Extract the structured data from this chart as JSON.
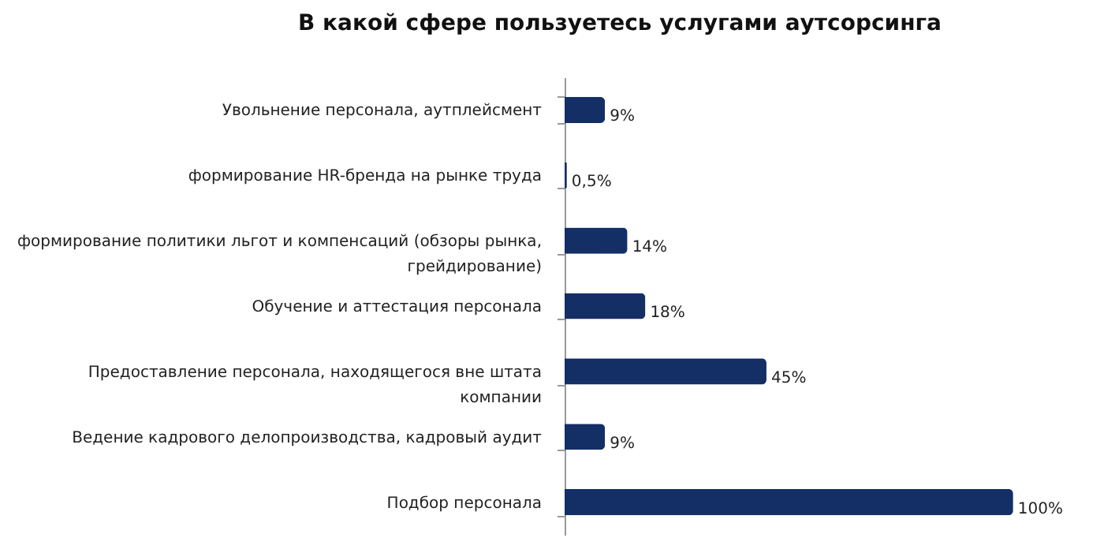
{
  "chart_data": {
    "type": "bar",
    "orientation": "horizontal",
    "title": "В какой сфере пользуетесь услугами аутсорсинга",
    "categories": [
      "Увольнение персонала, аутплейсмент",
      "формирование HR-бренда на рынке труда",
      "формирование политики льгот и компенсаций (обзоры рынка, грейдирование)",
      "Обучение и аттестация персонала",
      "Предоставление персонала, находящегося вне штата компании",
      "Ведение кадрового делопроизводства, кадровый аудит",
      "Подбор персонала"
    ],
    "values": [
      9,
      0.5,
      14,
      18,
      45,
      9,
      100
    ],
    "value_labels": [
      "9%",
      "0,5%",
      "14%",
      "18%",
      "45%",
      "9%",
      "100%"
    ],
    "color": "#142f66"
  }
}
